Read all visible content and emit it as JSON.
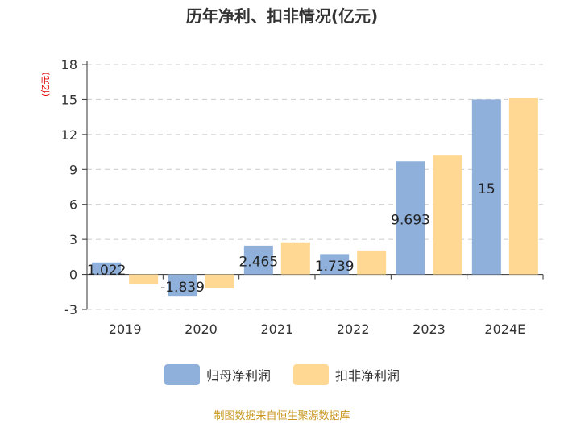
{
  "chart_data": {
    "type": "bar",
    "title": "历年净利、扣非情况(亿元)",
    "ylabel": "(亿元)",
    "xlabel": "",
    "categories": [
      "2019",
      "2020",
      "2021",
      "2022",
      "2023",
      "2024E"
    ],
    "ylim": [
      -3,
      18
    ],
    "yticks": [
      -3,
      0,
      3,
      6,
      9,
      12,
      15,
      18
    ],
    "series": [
      {
        "name": "归母净利润",
        "values": [
          1.022,
          -1.839,
          2.465,
          1.739,
          9.693,
          15
        ],
        "labels": [
          "1.022",
          "-1.839",
          "2.465",
          "1.739",
          "9.693",
          "15"
        ]
      },
      {
        "name": "扣非净利润",
        "values": [
          -0.85,
          -1.2,
          2.75,
          2.05,
          10.25,
          15.1
        ]
      }
    ],
    "colors": {
      "series1": "#8eb0db",
      "series2": "#ffd893"
    }
  },
  "legend": {
    "item1": "归母净利润",
    "item2": "扣非净利润"
  },
  "footer": "制图数据来自恒生聚源数据库"
}
